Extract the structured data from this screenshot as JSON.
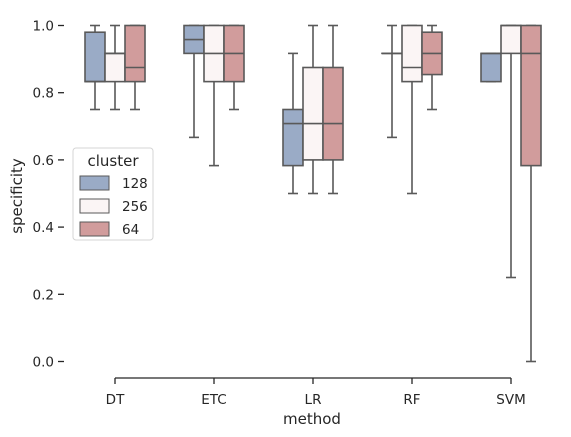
{
  "chart_data": {
    "type": "box",
    "xlabel": "method",
    "ylabel": "specificity",
    "ylim": [
      -0.05,
      1.03
    ],
    "yticks": [
      "0.0",
      "0.2",
      "0.4",
      "0.6",
      "0.8",
      "1.0"
    ],
    "categories": [
      "DT",
      "ETC",
      "LR",
      "RF",
      "SVM"
    ],
    "legend": {
      "title": "cluster",
      "placement": "center-left"
    },
    "series": [
      {
        "name": "128",
        "color": "#9aabc6",
        "boxes": [
          {
            "whislo": 0.75,
            "q1": 0.833,
            "med": 0.833,
            "q3": 0.98,
            "whishi": 1.0
          },
          {
            "whislo": 0.667,
            "q1": 0.917,
            "med": 0.958,
            "q3": 1.0,
            "whishi": 1.0
          },
          {
            "whislo": 0.5,
            "q1": 0.583,
            "med": 0.708,
            "q3": 0.75,
            "whishi": 0.917
          },
          {
            "whislo": 0.667,
            "q1": 0.917,
            "med": 0.917,
            "q3": 0.917,
            "whishi": 1.0
          },
          {
            "whislo": 0.833,
            "q1": 0.833,
            "med": 0.917,
            "q3": 0.917,
            "whishi": 0.917
          }
        ]
      },
      {
        "name": "256",
        "color": "#fbf5f5",
        "boxes": [
          {
            "whislo": 0.75,
            "q1": 0.833,
            "med": 0.917,
            "q3": 0.917,
            "whishi": 1.0
          },
          {
            "whislo": 0.583,
            "q1": 0.833,
            "med": 0.917,
            "q3": 1.0,
            "whishi": 1.0
          },
          {
            "whislo": 0.5,
            "q1": 0.6,
            "med": 0.708,
            "q3": 0.875,
            "whishi": 1.0
          },
          {
            "whislo": 0.5,
            "q1": 0.833,
            "med": 0.875,
            "q3": 1.0,
            "whishi": 1.0
          },
          {
            "whislo": 0.25,
            "q1": 0.917,
            "med": 1.0,
            "q3": 1.0,
            "whishi": 1.0
          }
        ]
      },
      {
        "name": "64",
        "color": "#d19c9c",
        "boxes": [
          {
            "whislo": 0.75,
            "q1": 0.833,
            "med": 0.875,
            "q3": 1.0,
            "whishi": 1.0
          },
          {
            "whislo": 0.75,
            "q1": 0.833,
            "med": 0.917,
            "q3": 1.0,
            "whishi": 1.0
          },
          {
            "whislo": 0.5,
            "q1": 0.6,
            "med": 0.708,
            "q3": 0.875,
            "whishi": 1.0
          },
          {
            "whislo": 0.75,
            "q1": 0.854,
            "med": 0.917,
            "q3": 0.98,
            "whishi": 1.0
          },
          {
            "whislo": 0.0,
            "q1": 0.583,
            "med": 0.917,
            "q3": 1.0,
            "whishi": 1.0
          }
        ]
      }
    ]
  },
  "colors": {
    "line": "#595959",
    "axis": "#262626"
  }
}
